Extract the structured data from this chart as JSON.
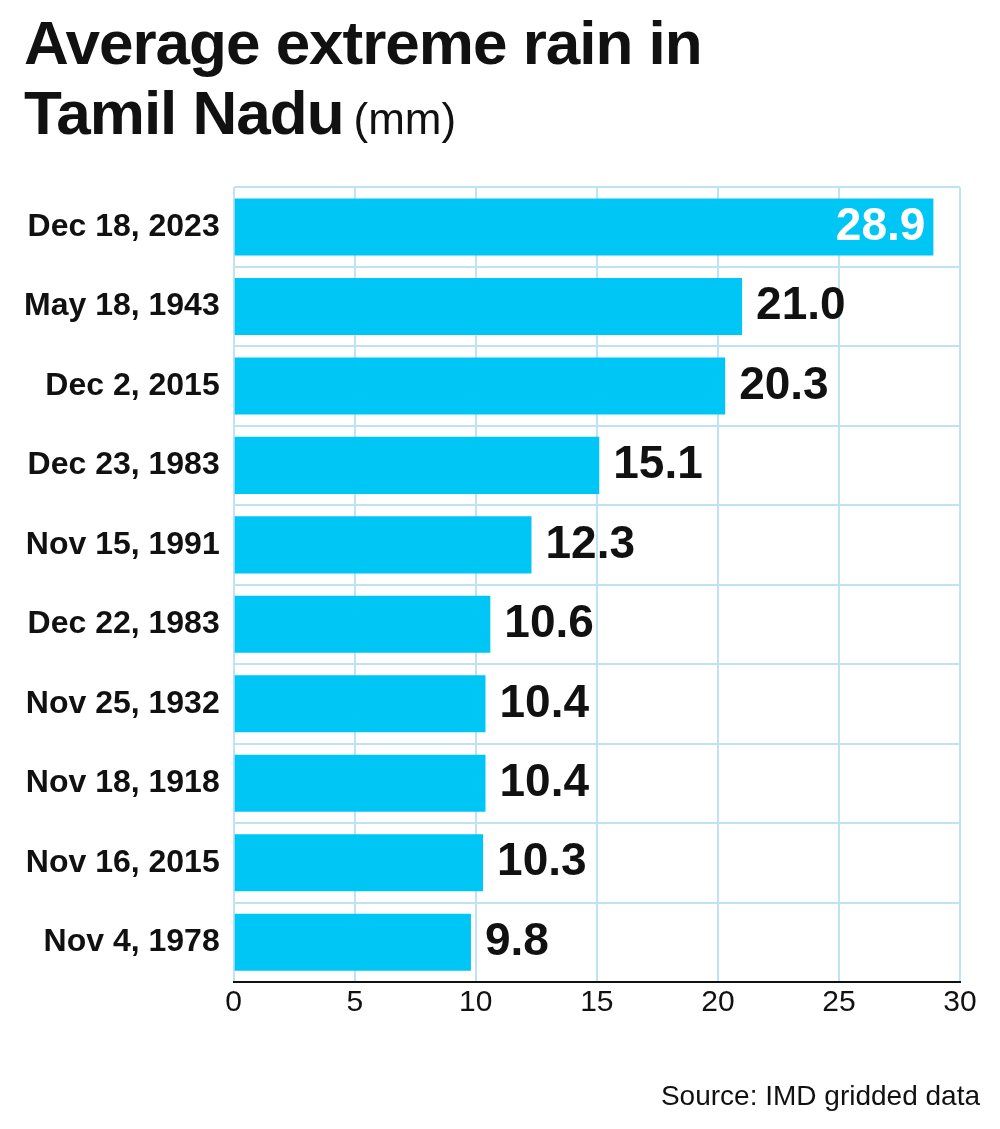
{
  "chart_data": {
    "type": "bar",
    "orientation": "horizontal",
    "title": "Average extreme rain in Tamil Nadu",
    "subtitle": "(mm)",
    "categories": [
      "Dec 18, 2023",
      "May 18, 1943",
      "Dec 2, 2015",
      "Dec 23, 1983",
      "Nov 15, 1991",
      "Dec 22, 1983",
      "Nov 25, 1932",
      "Nov 18, 1918",
      "Nov 16, 2015",
      "Nov 4, 1978"
    ],
    "values": [
      28.9,
      21.0,
      20.3,
      15.1,
      12.3,
      10.6,
      10.4,
      10.4,
      10.3,
      9.8
    ],
    "value_labels": [
      "28.9",
      "21.0",
      "20.3",
      "15.1",
      "12.3",
      "10.6",
      "10.4",
      "10.4",
      "10.3",
      "9.8"
    ],
    "color": "#00c6f6",
    "xlim": [
      0,
      30
    ],
    "xticks": [
      0,
      5,
      10,
      15,
      20,
      25,
      30
    ],
    "grid": true,
    "annotations": [
      "Source: IMD gridded data"
    ]
  }
}
